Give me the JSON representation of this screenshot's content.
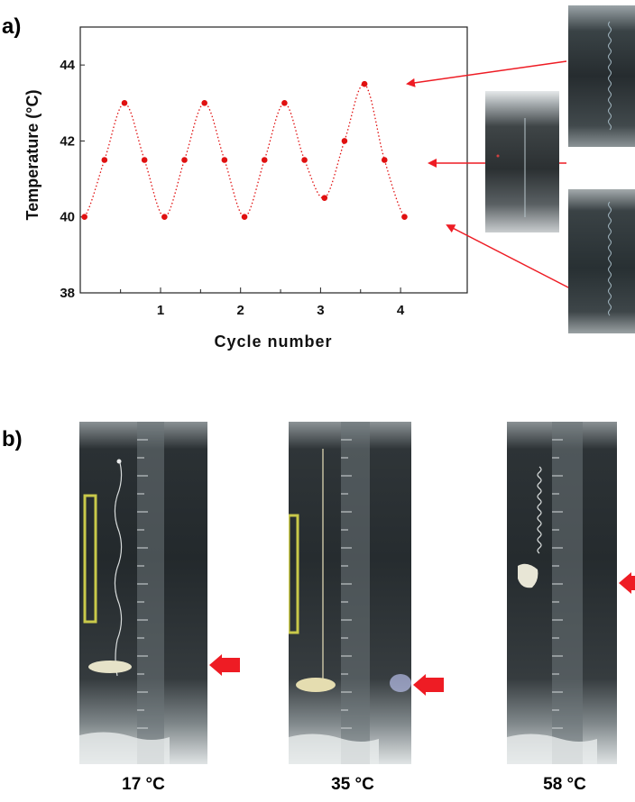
{
  "panels": {
    "a_label": "a)",
    "b_label": "b)"
  },
  "colors": {
    "marker": "#e01010",
    "arrow": "#ee1c24"
  },
  "chart_data": {
    "type": "scatter",
    "xlabel": "Cycle number",
    "ylabel": "Temperature (°C)",
    "xlim": [
      0.5,
      4.75
    ],
    "ylim": [
      38,
      45
    ],
    "xticks": [
      1,
      2,
      3,
      4
    ],
    "yticks": [
      38,
      40,
      42,
      44
    ],
    "grid": false,
    "points": {
      "x": [
        0.5,
        0.75,
        1.0,
        1.25,
        1.5,
        1.75,
        2.0,
        2.25,
        2.5,
        2.75,
        3.0,
        3.25,
        3.5,
        3.75,
        4.0,
        4.25,
        4.5
      ],
      "y": [
        40.0,
        41.5,
        43.0,
        41.5,
        40.0,
        41.5,
        43.0,
        41.5,
        40.0,
        41.5,
        43.0,
        41.5,
        40.5,
        42.0,
        43.5,
        41.5,
        40.0
      ]
    },
    "fit_line": "dotted smooth curve through points"
  },
  "panel_b": {
    "temperatures": [
      "17 °C",
      "35 °C",
      "58 °C"
    ]
  }
}
